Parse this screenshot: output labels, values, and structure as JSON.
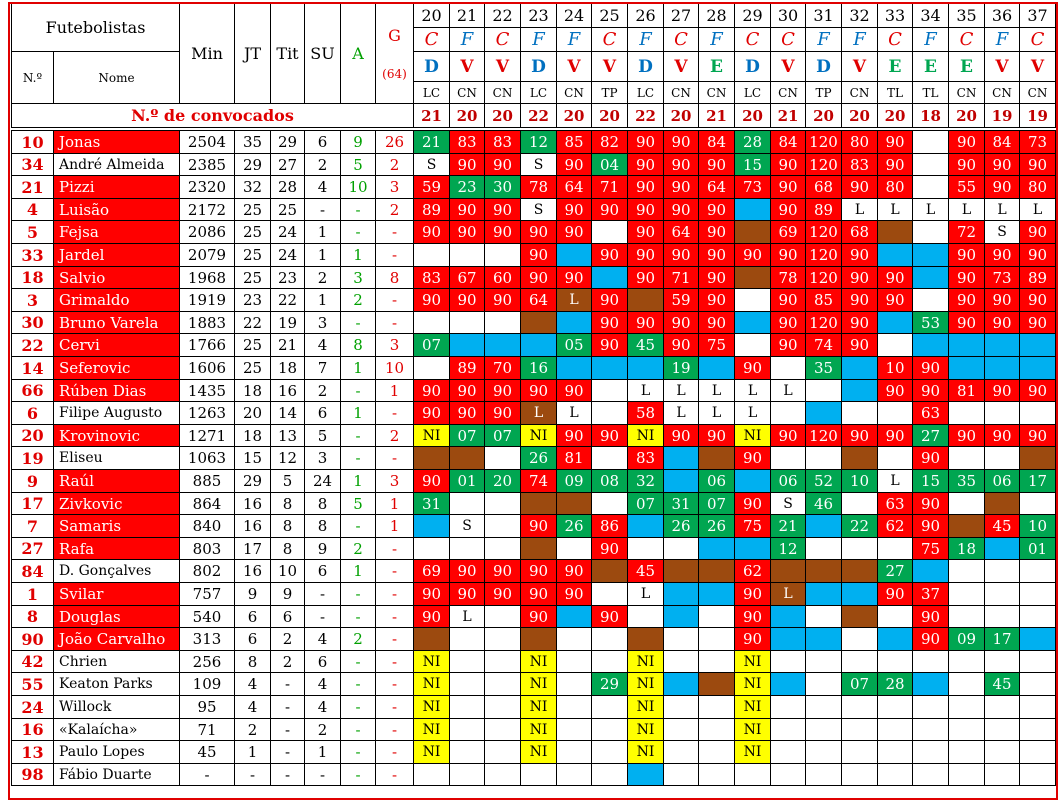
{
  "headers": {
    "title_left": "Futebolistas",
    "num": "N.º",
    "name": "Nome",
    "min": "Min",
    "jt": "JT",
    "tit": "Tit",
    "su": "SU",
    "a": "A",
    "g": "G",
    "g_total": "(64)",
    "convocados_label": "N.º de convocados"
  },
  "matchdays": [
    "20",
    "21",
    "22",
    "23",
    "24",
    "25",
    "26",
    "27",
    "28",
    "29",
    "30",
    "31",
    "32",
    "33",
    "34",
    "35",
    "36",
    "37"
  ],
  "venue": [
    "C",
    "F",
    "C",
    "F",
    "F",
    "C",
    "F",
    "C",
    "F",
    "C",
    "C",
    "F",
    "F",
    "C",
    "F",
    "C",
    "F",
    "C"
  ],
  "result": [
    "D",
    "V",
    "V",
    "D",
    "V",
    "V",
    "D",
    "V",
    "E",
    "D",
    "V",
    "D",
    "V",
    "E",
    "E",
    "E",
    "V",
    "V"
  ],
  "competition": [
    "LC",
    "CN",
    "CN",
    "LC",
    "CN",
    "TP",
    "LC",
    "CN",
    "CN",
    "LC",
    "CN",
    "TP",
    "CN",
    "TL",
    "TL",
    "CN",
    "CN",
    "CN"
  ],
  "convocados": [
    "21",
    "20",
    "20",
    "22",
    "20",
    "20",
    "22",
    "20",
    "21",
    "20",
    "21",
    "20",
    "20",
    "20",
    "18",
    "20",
    "19",
    "19"
  ],
  "players": [
    {
      "num": "10",
      "name": "Jonas",
      "min": "2504",
      "jt": "35",
      "tit": "29",
      "su": "6",
      "a": "9",
      "g": "26",
      "hl": "red",
      "cells": [
        "G21",
        "R83",
        "R83",
        "G12",
        "R85",
        "R82",
        "R90",
        "R90",
        "R84",
        "G28",
        "R84",
        "R120",
        "R80",
        "R90",
        "W",
        "R90",
        "R84",
        "R73"
      ]
    },
    {
      "num": "34",
      "name": "André Almeida",
      "min": "2385",
      "jt": "29",
      "tit": "27",
      "su": "2",
      "a": "5",
      "g": "2",
      "hl": "white",
      "cells": [
        "WS",
        "R90",
        "R90",
        "WS",
        "R90",
        "G04",
        "R90",
        "R90",
        "R90",
        "G15",
        "R90",
        "R120",
        "R83",
        "R90",
        "W",
        "R90",
        "R90",
        "R90"
      ]
    },
    {
      "num": "21",
      "name": "Pizzi",
      "min": "2320",
      "jt": "32",
      "tit": "28",
      "su": "4",
      "a": "10",
      "g": "3",
      "hl": "red",
      "cells": [
        "R59",
        "G23",
        "G30",
        "R78",
        "R64",
        "R71",
        "R90",
        "R90",
        "R64",
        "R73",
        "R90",
        "R68",
        "R90",
        "R80",
        "W",
        "R55",
        "R90",
        "R80"
      ]
    },
    {
      "num": "4",
      "name": "Luisão",
      "min": "2172",
      "jt": "25",
      "tit": "25",
      "su": "-",
      "a": "-",
      "g": "2",
      "hl": "red",
      "cells": [
        "R89",
        "R90",
        "R90",
        "WS",
        "R90",
        "R90",
        "R90",
        "R90",
        "R90",
        "B",
        "R90",
        "R89",
        "WL",
        "WL",
        "WL",
        "WL",
        "WL",
        "WL"
      ]
    },
    {
      "num": "5",
      "name": "Fejsa",
      "min": "2086",
      "jt": "25",
      "tit": "24",
      "su": "1",
      "a": "-",
      "g": "-",
      "hl": "red",
      "cells": [
        "R90",
        "R90",
        "R90",
        "R90",
        "R90",
        "W",
        "R90",
        "R64",
        "R90",
        "N",
        "R69",
        "R120",
        "R68",
        "N",
        "W",
        "R72",
        "WS",
        "R90"
      ]
    },
    {
      "num": "33",
      "name": "Jardel",
      "min": "2079",
      "jt": "25",
      "tit": "24",
      "su": "1",
      "a": "1",
      "g": "-",
      "hl": "red",
      "cells": [
        "W",
        "W",
        "W",
        "R90",
        "B",
        "R90",
        "R90",
        "R90",
        "R90",
        "R90",
        "R90",
        "R120",
        "R90",
        "B",
        "B",
        "R90",
        "R90",
        "R90"
      ]
    },
    {
      "num": "18",
      "name": "Salvio",
      "min": "1968",
      "jt": "25",
      "tit": "23",
      "su": "2",
      "a": "3",
      "g": "8",
      "hl": "red",
      "cells": [
        "R83",
        "R67",
        "R60",
        "R90",
        "R90",
        "B",
        "R90",
        "R71",
        "R90",
        "N",
        "R78",
        "R120",
        "R90",
        "R90",
        "B",
        "R90",
        "R73",
        "R89"
      ]
    },
    {
      "num": "3",
      "name": "Grimaldo",
      "min": "1919",
      "jt": "23",
      "tit": "22",
      "su": "1",
      "a": "2",
      "g": "-",
      "hl": "red",
      "cells": [
        "R90",
        "R90",
        "R90",
        "R64",
        "NL",
        "R90",
        "N",
        "R59",
        "R90",
        "W",
        "R90",
        "R85",
        "R90",
        "R90",
        "W",
        "R90",
        "R90",
        "R90"
      ]
    },
    {
      "num": "30",
      "name": "Bruno Varela",
      "min": "1883",
      "jt": "22",
      "tit": "19",
      "su": "3",
      "a": "-",
      "g": "-",
      "hl": "red",
      "cells": [
        "W",
        "W",
        "W",
        "N",
        "B",
        "R90",
        "R90",
        "R90",
        "R90",
        "B",
        "R90",
        "R120",
        "R90",
        "B",
        "G53",
        "R90",
        "R90",
        "R90"
      ]
    },
    {
      "num": "22",
      "name": "Cervi",
      "min": "1766",
      "jt": "25",
      "tit": "21",
      "su": "4",
      "a": "8",
      "g": "3",
      "hl": "red",
      "cells": [
        "G07",
        "B",
        "B",
        "B",
        "G05",
        "R90",
        "G45",
        "R90",
        "R75",
        "W",
        "R90",
        "R74",
        "R90",
        "W",
        "B",
        "B",
        "B",
        "B"
      ]
    },
    {
      "num": "14",
      "name": "Seferovic",
      "min": "1606",
      "jt": "25",
      "tit": "18",
      "su": "7",
      "a": "1",
      "g": "10",
      "hl": "red",
      "cells": [
        "W",
        "R89",
        "R70",
        "G16",
        "B",
        "B",
        "B",
        "G19",
        "B",
        "R90",
        "W",
        "G35",
        "B",
        "R10",
        "R90",
        "B",
        "B",
        "B"
      ]
    },
    {
      "num": "66",
      "name": "Rúben Dias",
      "min": "1435",
      "jt": "18",
      "tit": "16",
      "su": "2",
      "a": "-",
      "g": "1",
      "hl": "red",
      "cells": [
        "R90",
        "R90",
        "R90",
        "R90",
        "R90",
        "W",
        "WL",
        "WL",
        "WL",
        "WL",
        "WL",
        "W",
        "B",
        "R90",
        "R90",
        "R81",
        "R90",
        "R90"
      ]
    },
    {
      "num": "6",
      "name": "Filipe Augusto",
      "min": "1263",
      "jt": "20",
      "tit": "14",
      "su": "6",
      "a": "1",
      "g": "-",
      "hl": "white",
      "cells": [
        "R90",
        "R90",
        "R90",
        "NL",
        "WL",
        "W",
        "R58",
        "WL",
        "WL",
        "WL",
        "W",
        "B",
        "W",
        "W",
        "R63",
        "W",
        "W",
        "W"
      ]
    },
    {
      "num": "20",
      "name": "Krovinovic",
      "min": "1271",
      "jt": "18",
      "tit": "13",
      "su": "5",
      "a": "-",
      "g": "2",
      "hl": "red",
      "cells": [
        "YNI",
        "G07",
        "G07",
        "YNI",
        "R90",
        "R90",
        "YNI",
        "R90",
        "R90",
        "YNI",
        "R90",
        "R120",
        "R90",
        "R90",
        "G27",
        "R90",
        "R90",
        "R90"
      ]
    },
    {
      "num": "19",
      "name": "Eliseu",
      "min": "1063",
      "jt": "15",
      "tit": "12",
      "su": "3",
      "a": "-",
      "g": "-",
      "hl": "white",
      "cells": [
        "N",
        "N",
        "W",
        "G26",
        "R81",
        "W",
        "R83",
        "B",
        "N",
        "R90",
        "W",
        "W",
        "N",
        "W",
        "R90",
        "W",
        "W",
        "N"
      ]
    },
    {
      "num": "9",
      "name": "Raúl",
      "min": "885",
      "jt": "29",
      "tit": "5",
      "su": "24",
      "a": "1",
      "g": "3",
      "hl": "red",
      "cells": [
        "R90",
        "G01",
        "G20",
        "R74",
        "G09",
        "G08",
        "G32",
        "B",
        "G06",
        "B",
        "G06",
        "G52",
        "G10",
        "WL",
        "G15",
        "G35",
        "G06",
        "G17"
      ]
    },
    {
      "num": "17",
      "name": "Zivkovic",
      "min": "864",
      "jt": "16",
      "tit": "8",
      "su": "8",
      "a": "5",
      "g": "1",
      "hl": "red",
      "cells": [
        "G31",
        "W",
        "W",
        "N",
        "N",
        "W",
        "G07",
        "G31",
        "G07",
        "R90",
        "WS",
        "G46",
        "W",
        "R63",
        "R90",
        "W",
        "N",
        "W"
      ]
    },
    {
      "num": "7",
      "name": "Samaris",
      "min": "840",
      "jt": "16",
      "tit": "8",
      "su": "8",
      "a": "-",
      "g": "1",
      "hl": "red",
      "cells": [
        "B",
        "WS",
        "W",
        "R90",
        "G26",
        "R86",
        "B",
        "G26",
        "G26",
        "R75",
        "G21",
        "B",
        "G22",
        "R62",
        "R90",
        "N",
        "R45",
        "G10"
      ]
    },
    {
      "num": "27",
      "name": "Rafa",
      "min": "803",
      "jt": "17",
      "tit": "8",
      "su": "9",
      "a": "2",
      "g": "-",
      "hl": "red",
      "cells": [
        "W",
        "W",
        "W",
        "N",
        "W",
        "R90",
        "W",
        "W",
        "B",
        "B",
        "G12",
        "W",
        "W",
        "W",
        "R75",
        "G18",
        "B",
        "G01"
      ]
    },
    {
      "num": "84",
      "name": "D. Gonçalves",
      "min": "802",
      "jt": "16",
      "tit": "10",
      "su": "6",
      "a": "1",
      "g": "-",
      "hl": "white",
      "cells": [
        "R69",
        "R90",
        "R90",
        "R90",
        "R90",
        "N",
        "R45",
        "N",
        "N",
        "R62",
        "N",
        "N",
        "N",
        "G27",
        "B",
        "W",
        "W",
        "W"
      ]
    },
    {
      "num": "1",
      "name": "Svilar",
      "min": "757",
      "jt": "9",
      "tit": "9",
      "su": "-",
      "a": "-",
      "g": "-",
      "hl": "red",
      "cells": [
        "R90",
        "R90",
        "R90",
        "R90",
        "R90",
        "W",
        "WL",
        "B",
        "B",
        "R90",
        "NL",
        "B",
        "B",
        "R90",
        "R37",
        "W",
        "W",
        "W"
      ]
    },
    {
      "num": "8",
      "name": "Douglas",
      "min": "540",
      "jt": "6",
      "tit": "6",
      "su": "-",
      "a": "-",
      "g": "-",
      "hl": "red",
      "cells": [
        "R90",
        "WL",
        "W",
        "R90",
        "B",
        "R90",
        "W",
        "B",
        "W",
        "R90",
        "B",
        "W",
        "N",
        "W",
        "R90",
        "W",
        "W",
        "W"
      ]
    },
    {
      "num": "90",
      "name": "João Carvalho",
      "min": "313",
      "jt": "6",
      "tit": "2",
      "su": "4",
      "a": "2",
      "g": "-",
      "hl": "red",
      "cells": [
        "N",
        "W",
        "W",
        "N",
        "W",
        "W",
        "N",
        "W",
        "W",
        "R90",
        "B",
        "B",
        "W",
        "B",
        "R90",
        "G09",
        "G17",
        "B"
      ]
    },
    {
      "num": "42",
      "name": "Chrien",
      "min": "256",
      "jt": "8",
      "tit": "2",
      "su": "6",
      "a": "-",
      "g": "-",
      "hl": "white",
      "cells": [
        "YNI",
        "W",
        "W",
        "YNI",
        "W",
        "W",
        "YNI",
        "W",
        "W",
        "YNI",
        "W",
        "W",
        "W",
        "W",
        "W",
        "W",
        "W",
        "W"
      ]
    },
    {
      "num": "55",
      "name": "Keaton Parks",
      "min": "109",
      "jt": "4",
      "tit": "-",
      "su": "4",
      "a": "-",
      "g": "-",
      "hl": "white",
      "cells": [
        "YNI",
        "W",
        "W",
        "YNI",
        "W",
        "G29",
        "YNI",
        "B",
        "N",
        "YNI",
        "B",
        "W",
        "G07",
        "G28",
        "B",
        "W",
        "G45",
        "W"
      ]
    },
    {
      "num": "24",
      "name": "Willock",
      "min": "95",
      "jt": "4",
      "tit": "-",
      "su": "4",
      "a": "-",
      "g": "-",
      "hl": "white",
      "cells": [
        "YNI",
        "W",
        "W",
        "YNI",
        "W",
        "W",
        "YNI",
        "W",
        "W",
        "YNI",
        "W",
        "W",
        "W",
        "W",
        "W",
        "W",
        "W",
        "W"
      ]
    },
    {
      "num": "16",
      "name": "«Kalaícha»",
      "min": "71",
      "jt": "2",
      "tit": "-",
      "su": "2",
      "a": "-",
      "g": "-",
      "hl": "white",
      "cells": [
        "YNI",
        "W",
        "W",
        "YNI",
        "W",
        "W",
        "YNI",
        "W",
        "W",
        "YNI",
        "W",
        "W",
        "W",
        "W",
        "W",
        "W",
        "W",
        "W"
      ]
    },
    {
      "num": "13",
      "name": "Paulo Lopes",
      "min": "45",
      "jt": "1",
      "tit": "-",
      "su": "1",
      "a": "-",
      "g": "-",
      "hl": "white",
      "cells": [
        "YNI",
        "W",
        "W",
        "YNI",
        "W",
        "W",
        "YNI",
        "W",
        "W",
        "YNI",
        "W",
        "W",
        "W",
        "W",
        "W",
        "W",
        "W",
        "W"
      ]
    },
    {
      "num": "98",
      "name": "Fábio Duarte",
      "min": "-",
      "jt": "-",
      "tit": "-",
      "su": "-",
      "a": "-",
      "g": "-",
      "hl": "white",
      "cells": [
        "W",
        "W",
        "W",
        "W",
        "W",
        "W",
        "B",
        "W",
        "W",
        "W",
        "W",
        "W",
        "W",
        "W",
        "W",
        "W",
        "W",
        "W"
      ]
    }
  ],
  "colors": {
    "red": "#ff0000",
    "green": "#00a651",
    "blue": "#00b0f0",
    "brown": "#9c4a0f",
    "yellow": "#ffff00",
    "venue_c": "#e00000",
    "venue_f": "#0070c0",
    "result_d": "#0070c0",
    "result_v": "#e00000",
    "result_e": "#00a651"
  }
}
